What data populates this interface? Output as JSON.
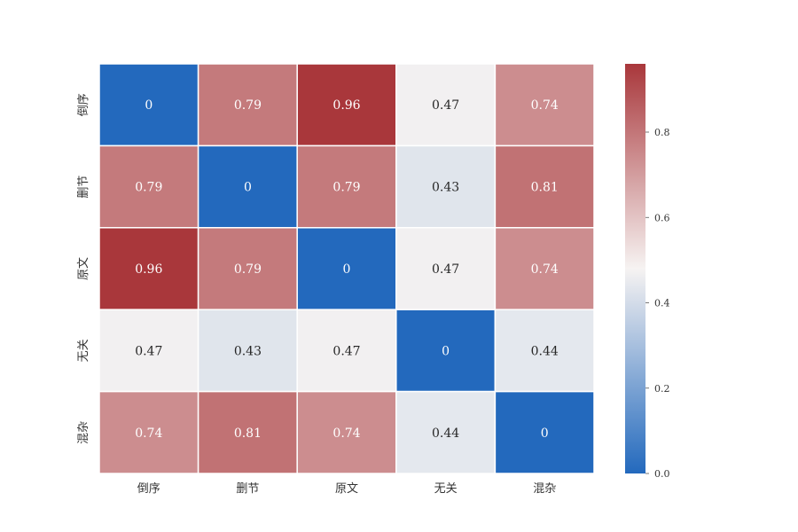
{
  "chart_data": {
    "type": "heatmap",
    "title": "",
    "xlabel": "",
    "ylabel": "",
    "x_categories": [
      "倒序",
      "删节",
      "原文",
      "无关",
      "混杂"
    ],
    "y_categories": [
      "倒序",
      "删节",
      "原文",
      "无关",
      "混杂"
    ],
    "values": [
      [
        0,
        0.79,
        0.96,
        0.47,
        0.74
      ],
      [
        0.79,
        0,
        0.79,
        0.43,
        0.81
      ],
      [
        0.96,
        0.79,
        0,
        0.47,
        0.74
      ],
      [
        0.47,
        0.43,
        0.47,
        0,
        0.44
      ],
      [
        0.74,
        0.81,
        0.74,
        0.44,
        0
      ]
    ],
    "annotations": [
      [
        "0",
        "0.79",
        "0.96",
        "0.47",
        "0.74"
      ],
      [
        "0.79",
        "0",
        "0.79",
        "0.43",
        "0.81"
      ],
      [
        "0.96",
        "0.79",
        "0",
        "0.47",
        "0.74"
      ],
      [
        "0.47",
        "0.43",
        "0.47",
        "0",
        "0.44"
      ],
      [
        "0.74",
        "0.81",
        "0.74",
        "0.44",
        "0"
      ]
    ],
    "colormap": "vlag",
    "vmin": 0,
    "vmax": 0.96,
    "colors": {
      "low": "#2369bd",
      "mid": "#f6f3f2",
      "high": "#a9373b"
    },
    "colorbar": {
      "ticks": [
        0.0,
        0.2,
        0.4,
        0.6,
        0.8
      ],
      "tick_labels": [
        "0.0",
        "0.2",
        "0.4",
        "0.6",
        "0.8"
      ]
    },
    "grid": false,
    "legend": "colorbar-right"
  }
}
